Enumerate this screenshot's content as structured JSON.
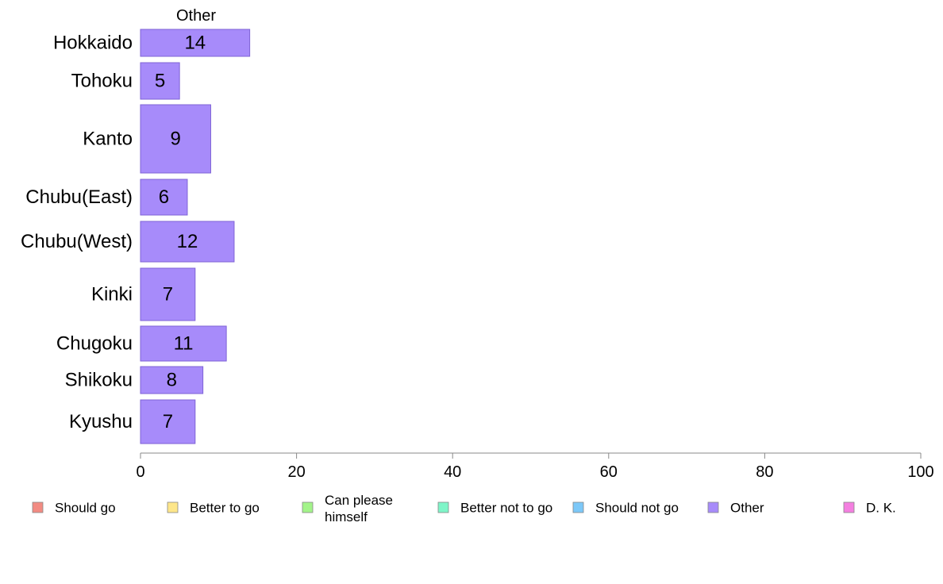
{
  "chart_data": {
    "type": "bar",
    "orientation": "horizontal",
    "column_title": "Other",
    "categories": [
      "Hokkaido",
      "Tohoku",
      "Kanto",
      "Chubu(East)",
      "Chubu(West)",
      "Kinki",
      "Chugoku",
      "Shikoku",
      "Kyushu"
    ],
    "series": [
      {
        "name": "Other",
        "values": [
          14,
          5,
          9,
          6,
          12,
          7,
          11,
          8,
          7
        ],
        "color": "#a78bfa"
      }
    ],
    "xlim": [
      0,
      100
    ],
    "xticks": [
      0,
      20,
      40,
      60,
      80,
      100
    ],
    "grid": false,
    "legend_position": "bottom",
    "legend": [
      {
        "label": "Should go",
        "color": "#f28b82"
      },
      {
        "label": "Better to go",
        "color": "#fde68a"
      },
      {
        "label": "Can please himself",
        "color": "#a3f48a"
      },
      {
        "label": "Better not to go",
        "color": "#7ff5c8"
      },
      {
        "label": "Should not go",
        "color": "#7cc8f8"
      },
      {
        "label": "Other",
        "color": "#a78bfa"
      },
      {
        "label": "D. K.",
        "color": "#f47fe0"
      }
    ]
  }
}
